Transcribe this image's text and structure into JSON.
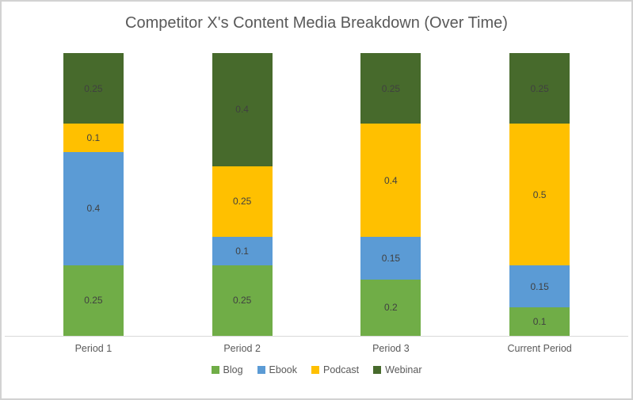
{
  "chart_data": {
    "type": "bar",
    "stacked": true,
    "title": "Competitor X's Content Media Breakdown (Over Time)",
    "categories": [
      "Period 1",
      "Period 2",
      "Period 3",
      "Current Period"
    ],
    "series": [
      {
        "name": "Blog",
        "color": "#70AD47",
        "values": [
          0.25,
          0.25,
          0.2,
          0.1
        ]
      },
      {
        "name": "Ebook",
        "color": "#5B9BD5",
        "values": [
          0.4,
          0.1,
          0.15,
          0.15
        ]
      },
      {
        "name": "Podcast",
        "color": "#FFC000",
        "values": [
          0.1,
          0.25,
          0.4,
          0.5
        ]
      },
      {
        "name": "Webinar",
        "color": "#476A2C",
        "values": [
          0.25,
          0.4,
          0.25,
          0.25
        ]
      }
    ],
    "xlabel": "",
    "ylabel": "",
    "ylim": [
      0,
      1
    ],
    "grid": false,
    "data_labels": true,
    "legend_position": "bottom",
    "styles": {
      "title_color": "#595959",
      "data_label_color": "#404040",
      "axis_label_color": "#595959",
      "axis_line_color": "#d9d9d9",
      "background": "#ffffff"
    }
  }
}
